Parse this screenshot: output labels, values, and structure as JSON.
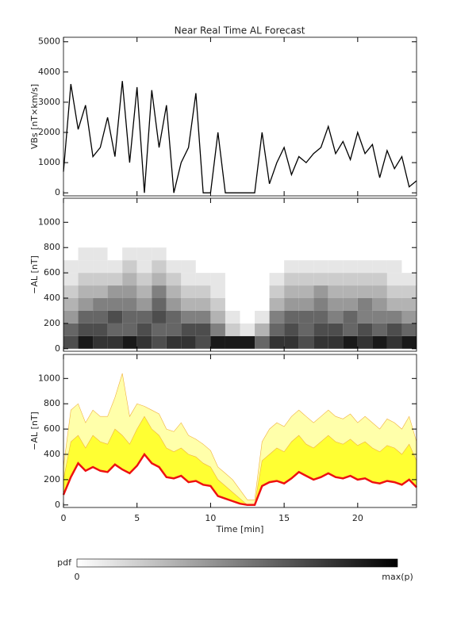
{
  "chart_data": [
    {
      "type": "line",
      "title": "Near Real Time AL Forecast",
      "ylabel": "VBs [nT×km/s]",
      "x": [
        0,
        0.5,
        1,
        1.5,
        2,
        2.5,
        3,
        3.5,
        4,
        4.5,
        5,
        5.5,
        6,
        6.5,
        7,
        7.5,
        8,
        8.5,
        9,
        9.5,
        10,
        10.5,
        11,
        11.5,
        12,
        12.5,
        13,
        13.5,
        14,
        14.5,
        15,
        15.5,
        16,
        16.5,
        17,
        17.5,
        18,
        18.5,
        19,
        19.5,
        20,
        20.5,
        21,
        21.5,
        22,
        22.5,
        23,
        23.5,
        24
      ],
      "series": [
        {
          "color": "#000000",
          "values": [
            700,
            3600,
            2100,
            2900,
            1200,
            1500,
            2500,
            1200,
            3700,
            1000,
            3500,
            0,
            3400,
            1500,
            2900,
            0,
            1000,
            1500,
            3300,
            0,
            0,
            2000,
            0,
            0,
            0,
            0,
            0,
            2000,
            300,
            1000,
            1500,
            600,
            1200,
            1000,
            1300,
            1500,
            2200,
            1300,
            1700,
            1100,
            2000,
            1300,
            1600,
            500,
            1400,
            800,
            1200,
            200,
            400
          ]
        }
      ],
      "xlim": [
        0,
        24
      ],
      "xticks": [
        0,
        5,
        10,
        15,
        20
      ],
      "ylim": [
        -100,
        5150
      ],
      "yticks": [
        0,
        1000,
        2000,
        3000,
        4000,
        5000
      ]
    },
    {
      "type": "heatmap",
      "ylabel": "−AL [nT]",
      "x_bins": [
        0,
        1,
        2,
        3,
        4,
        5,
        6,
        7,
        8,
        9,
        10,
        11,
        12,
        13,
        14,
        15,
        16,
        17,
        18,
        19,
        20,
        21,
        22,
        23,
        24
      ],
      "y_bins": [
        0,
        100,
        200,
        300,
        400,
        500,
        600,
        700,
        800
      ],
      "z": [
        [
          0.7,
          0.9,
          0.8,
          0.8,
          0.9,
          0.8,
          0.7,
          0.8,
          0.8,
          0.7,
          0.9,
          0.9,
          0.9,
          0.6,
          0.8,
          0.8,
          0.7,
          0.8,
          0.8,
          0.9,
          0.8,
          0.9,
          0.8,
          0.9
        ],
        [
          0.6,
          0.7,
          0.7,
          0.6,
          0.6,
          0.7,
          0.6,
          0.6,
          0.7,
          0.7,
          0.5,
          0.2,
          0.1,
          0.3,
          0.6,
          0.7,
          0.6,
          0.7,
          0.7,
          0.6,
          0.7,
          0.6,
          0.7,
          0.6
        ],
        [
          0.4,
          0.6,
          0.6,
          0.7,
          0.6,
          0.6,
          0.7,
          0.6,
          0.5,
          0.5,
          0.3,
          0.1,
          0,
          0.1,
          0.5,
          0.6,
          0.6,
          0.6,
          0.5,
          0.6,
          0.5,
          0.5,
          0.5,
          0.4
        ],
        [
          0.3,
          0.4,
          0.5,
          0.5,
          0.5,
          0.4,
          0.6,
          0.4,
          0.3,
          0.3,
          0.2,
          0,
          0,
          0,
          0.3,
          0.4,
          0.4,
          0.5,
          0.4,
          0.4,
          0.5,
          0.4,
          0.3,
          0.3
        ],
        [
          0.2,
          0.3,
          0.3,
          0.4,
          0.4,
          0.3,
          0.5,
          0.3,
          0.2,
          0.2,
          0.1,
          0,
          0,
          0,
          0.2,
          0.3,
          0.3,
          0.4,
          0.3,
          0.3,
          0.3,
          0.3,
          0.2,
          0.2
        ],
        [
          0.1,
          0.2,
          0.2,
          0.2,
          0.3,
          0.2,
          0.3,
          0.2,
          0.1,
          0.1,
          0.1,
          0,
          0,
          0,
          0.1,
          0.2,
          0.2,
          0.2,
          0.2,
          0.2,
          0.2,
          0.2,
          0.1,
          0.1
        ],
        [
          0.1,
          0.1,
          0.1,
          0.1,
          0.2,
          0.1,
          0.2,
          0.1,
          0.1,
          0,
          0,
          0,
          0,
          0,
          0,
          0.1,
          0.1,
          0.1,
          0.1,
          0.1,
          0.1,
          0.1,
          0.1,
          0
        ],
        [
          0,
          0.1,
          0.1,
          0,
          0.1,
          0.1,
          0.1,
          0,
          0,
          0,
          0,
          0,
          0,
          0,
          0,
          0,
          0,
          0,
          0,
          0,
          0,
          0,
          0,
          0
        ]
      ],
      "xlim": [
        0,
        24
      ],
      "xticks": [
        0,
        5,
        10,
        15,
        20
      ],
      "ylim": [
        -20,
        1190
      ],
      "yticks": [
        0,
        200,
        400,
        600,
        800,
        1000
      ]
    },
    {
      "type": "band",
      "ylabel": "−AL [nT]",
      "xlabel": "Time [min]",
      "x": [
        0,
        0.5,
        1,
        1.5,
        2,
        2.5,
        3,
        3.5,
        4,
        4.5,
        5,
        5.5,
        6,
        6.5,
        7,
        7.5,
        8,
        8.5,
        9,
        9.5,
        10,
        10.5,
        11,
        11.5,
        12,
        12.5,
        13,
        13.5,
        14,
        14.5,
        15,
        15.5,
        16,
        16.5,
        17,
        17.5,
        18,
        18.5,
        19,
        19.5,
        20,
        20.5,
        21,
        21.5,
        22,
        22.5,
        23,
        23.5,
        24
      ],
      "series": [
        {
          "color": "#ffffaa",
          "values": [
            300,
            750,
            800,
            650,
            750,
            700,
            700,
            850,
            1040,
            700,
            800,
            780,
            750,
            720,
            600,
            580,
            650,
            550,
            520,
            480,
            430,
            300,
            250,
            200,
            120,
            40,
            40,
            500,
            600,
            650,
            620,
            700,
            750,
            700,
            650,
            700,
            750,
            700,
            680,
            720,
            650,
            700,
            650,
            600,
            680,
            650,
            600,
            700,
            500
          ]
        },
        {
          "color": "#ffff33",
          "values": [
            200,
            500,
            550,
            450,
            550,
            500,
            480,
            600,
            550,
            480,
            600,
            700,
            600,
            550,
            450,
            420,
            450,
            400,
            380,
            330,
            300,
            200,
            150,
            100,
            50,
            0,
            0,
            350,
            400,
            450,
            420,
            500,
            550,
            480,
            450,
            500,
            550,
            500,
            480,
            520,
            470,
            500,
            450,
            420,
            470,
            450,
            400,
            480,
            350
          ]
        },
        {
          "color": "#ee1111",
          "values": [
            80,
            220,
            330,
            270,
            300,
            270,
            260,
            320,
            280,
            250,
            310,
            400,
            330,
            300,
            220,
            210,
            230,
            180,
            190,
            160,
            150,
            70,
            50,
            30,
            10,
            0,
            0,
            150,
            180,
            190,
            170,
            210,
            260,
            230,
            200,
            220,
            250,
            220,
            210,
            230,
            200,
            210,
            180,
            170,
            190,
            180,
            160,
            200,
            140
          ]
        }
      ],
      "xlim": [
        0,
        24
      ],
      "xticks": [
        0,
        5,
        10,
        15,
        20
      ],
      "ylim": [
        -20,
        1190
      ],
      "yticks": [
        0,
        200,
        400,
        600,
        800,
        1000
      ]
    }
  ],
  "colorbar": {
    "label": "pdf",
    "min_label": "0",
    "max_label": "max(p)"
  }
}
